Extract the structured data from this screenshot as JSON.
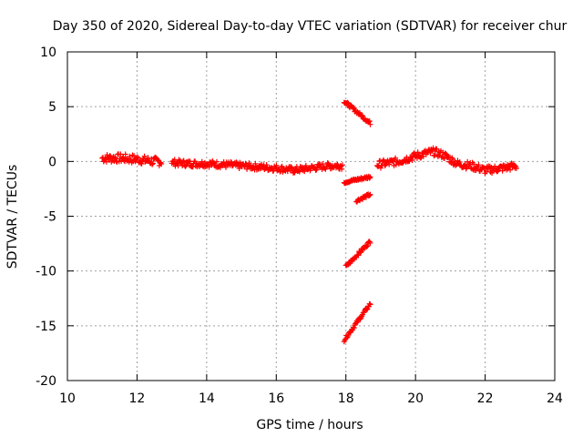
{
  "chart_data": {
    "type": "scatter",
    "title": "Day 350 of 2020, Sidereal Day-to-day VTEC variation (SDTVAR) for receiver chur",
    "xlabel": "GPS time / hours",
    "ylabel": "SDTVAR / TECUs",
    "xlim": [
      10,
      24
    ],
    "ylim": [
      -20,
      10
    ],
    "grid": true,
    "marker": "+",
    "x_ticks": [
      "10",
      "12",
      "14",
      "16",
      "18",
      "20",
      "22",
      "24"
    ],
    "y_ticks": [
      "-20",
      "-15",
      "-10",
      "-5",
      "0",
      "5",
      "10"
    ],
    "series": [
      {
        "name": "SDTVAR",
        "color": "#ff0000",
        "segments": [
          {
            "x": [
              11.0,
              11.5,
              12.0,
              12.5,
              12.7
            ],
            "y": [
              0.3,
              0.3,
              0.2,
              0.0,
              0.0
            ],
            "spread": 0.8
          },
          {
            "x": [
              13.0,
              13.5,
              14.0,
              14.5,
              15.0,
              15.5,
              16.0,
              16.5,
              17.0,
              17.5,
              17.9
            ],
            "y": [
              -0.1,
              -0.2,
              -0.2,
              -0.3,
              -0.4,
              -0.5,
              -0.6,
              -0.8,
              -0.6,
              -0.4,
              -0.4
            ],
            "spread": 0.6
          },
          {
            "x": [
              17.95,
              18.7
            ],
            "y": [
              5.5,
              3.5
            ],
            "spread": 0.3
          },
          {
            "x": [
              17.95,
              18.7
            ],
            "y": [
              -1.9,
              -1.4
            ],
            "spread": 0.25
          },
          {
            "x": [
              18.3,
              18.7
            ],
            "y": [
              -3.6,
              -3.0
            ],
            "spread": 0.25
          },
          {
            "x": [
              18.0,
              18.7
            ],
            "y": [
              -9.6,
              -7.3
            ],
            "spread": 0.3
          },
          {
            "x": [
              17.95,
              18.7
            ],
            "y": [
              -16.3,
              -13.0
            ],
            "spread": 0.3
          },
          {
            "x": [
              18.9,
              19.5,
              20.0,
              20.5,
              20.8,
              21.2,
              21.6,
              22.0,
              22.5,
              22.9
            ],
            "y": [
              -0.3,
              0.0,
              0.5,
              0.9,
              0.6,
              -0.2,
              -0.4,
              -0.8,
              -0.6,
              -0.4
            ],
            "spread": 0.7
          }
        ]
      }
    ]
  }
}
